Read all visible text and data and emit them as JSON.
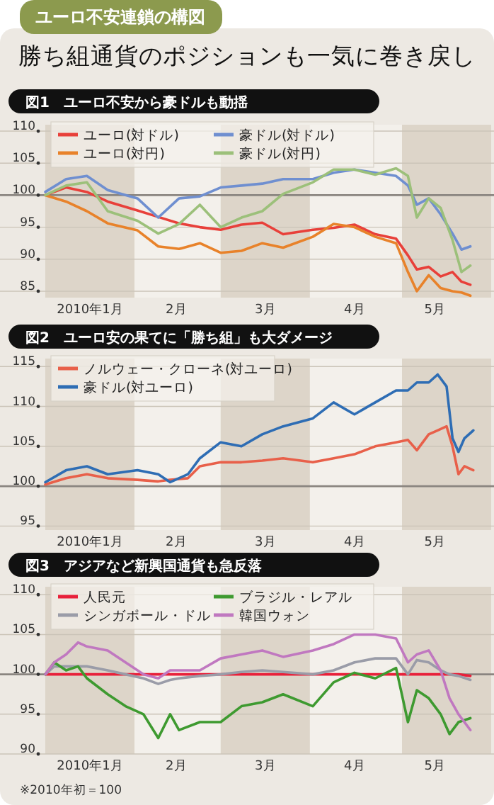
{
  "chart_data": [
    {
      "type": "line",
      "title": "勝ち組通貨のポジションも一気に巻き戻し",
      "subtitle": "図1　ユーロ不安から豪ドルも動揺",
      "annotations": [
        "ユーロ不安連鎖の構図"
      ],
      "x": [
        "2010-01-01",
        "2010-01-08",
        "2010-01-15",
        "2010-01-22",
        "2010-02-01",
        "2010-02-08",
        "2010-02-15",
        "2010-02-22",
        "2010-03-01",
        "2010-03-08",
        "2010-03-15",
        "2010-03-22",
        "2010-04-01",
        "2010-04-08",
        "2010-04-15",
        "2010-04-22",
        "2010-04-29",
        "2010-05-03",
        "2010-05-06",
        "2010-05-10",
        "2010-05-14",
        "2010-05-18",
        "2010-05-21",
        "2010-05-24"
      ],
      "series": [
        {
          "name": "ユーロ(対ドル)",
          "color": "#e8403a",
          "values": [
            100,
            101.2,
            100.5,
            99,
            97.6,
            96.6,
            95.6,
            95,
            94.6,
            95.4,
            95.7,
            93.9,
            94.6,
            94.9,
            95.4,
            93.9,
            93.2,
            90.6,
            88.4,
            88.8,
            87.3,
            88,
            86.5,
            86
          ]
        },
        {
          "name": "ユーロ(対円)",
          "color": "#e8822a",
          "values": [
            100,
            99,
            97.5,
            95.6,
            94.5,
            92,
            91.6,
            92.5,
            91,
            91.3,
            92.5,
            91.8,
            93.5,
            95.5,
            95,
            93.5,
            92.5,
            88,
            85,
            87.5,
            85.5,
            85,
            84.8,
            84.3
          ]
        },
        {
          "name": "豪ドル(対ドル)",
          "color": "#6f8fd0",
          "values": [
            100.5,
            102.5,
            103,
            100.8,
            99.5,
            96.5,
            99.5,
            99.8,
            101.2,
            101.5,
            101.8,
            102.5,
            102.5,
            103.5,
            104,
            103.5,
            103,
            101.5,
            98.5,
            99.5,
            97,
            94,
            91.5,
            92
          ]
        },
        {
          "name": "豪ドル(対円)",
          "color": "#9cc07a",
          "values": [
            100,
            101.5,
            102,
            97.5,
            96,
            94,
            95.5,
            98.5,
            95,
            96.5,
            97.5,
            100.2,
            102,
            104,
            104,
            103.2,
            104.2,
            103,
            96.5,
            99.5,
            98,
            93,
            88,
            89
          ]
        }
      ],
      "xlim": [
        "2010-01-01",
        "2010-05-31"
      ],
      "xticks": [
        {
          "value": "2010-01-16",
          "label": "2010年1月"
        },
        {
          "value": "2010-02-14",
          "label": "2月"
        },
        {
          "value": "2010-03-16",
          "label": "3月"
        },
        {
          "value": "2010-04-15",
          "label": "4月"
        },
        {
          "value": "2010-05-12",
          "label": "5月"
        }
      ],
      "ylim": [
        84,
        111
      ],
      "yticks": [
        85,
        90,
        95,
        100,
        105,
        110
      ],
      "grid": "y",
      "legend": "top left",
      "line_style": "solid",
      "marker": "none",
      "ref_lines": [
        {
          "axis": "y",
          "value": 100,
          "label": null,
          "color": "#8a8580"
        }
      ],
      "bands": [
        {
          "axis": "x",
          "from": "2010-01-01",
          "to": "2010-01-31",
          "label": null,
          "color": "#ddd5c9"
        },
        {
          "axis": "x",
          "from": "2010-03-01",
          "to": "2010-03-31",
          "label": null,
          "color": "#ddd5c9"
        },
        {
          "axis": "x",
          "from": "2010-05-01",
          "to": "2010-05-31",
          "label": null,
          "color": "#ddd5c9"
        }
      ]
    },
    {
      "type": "line",
      "title": "図2　ユーロ安の果てに「勝ち組」も大ダメージ",
      "x": [
        "2010-01-01",
        "2010-01-08",
        "2010-01-15",
        "2010-01-22",
        "2010-02-01",
        "2010-02-08",
        "2010-02-12",
        "2010-02-18",
        "2010-02-22",
        "2010-03-01",
        "2010-03-08",
        "2010-03-15",
        "2010-03-22",
        "2010-04-01",
        "2010-04-08",
        "2010-04-15",
        "2010-04-22",
        "2010-04-29",
        "2010-05-03",
        "2010-05-06",
        "2010-05-10",
        "2010-05-13",
        "2010-05-16",
        "2010-05-18",
        "2010-05-20",
        "2010-05-22",
        "2010-05-25"
      ],
      "series": [
        {
          "name": "ノルウェー・クローネ(対ユーロ)",
          "color": "#e8604a",
          "values": [
            100.2,
            101,
            101.5,
            101,
            100.8,
            100.6,
            100.8,
            101,
            102.5,
            103,
            103,
            103.2,
            103.5,
            103,
            103.5,
            104,
            105,
            105.5,
            105.8,
            104.5,
            106.5,
            107,
            107.5,
            105,
            101.5,
            102.5,
            102
          ]
        },
        {
          "name": "豪ドル(対ユーロ)",
          "color": "#2e6db4",
          "values": [
            100.5,
            102,
            102.5,
            101.5,
            102,
            101.5,
            100.5,
            101.5,
            103.5,
            105.5,
            105,
            106.5,
            107.5,
            108.5,
            110.5,
            109,
            110.5,
            112,
            112,
            113,
            113,
            114,
            112.5,
            106,
            104.3,
            106,
            107
          ]
        }
      ],
      "xlim": [
        "2010-01-01",
        "2010-05-31"
      ],
      "xticks": [
        {
          "value": "2010-01-16",
          "label": "2010年1月"
        },
        {
          "value": "2010-02-14",
          "label": "2月"
        },
        {
          "value": "2010-03-16",
          "label": "3月"
        },
        {
          "value": "2010-04-15",
          "label": "4月"
        },
        {
          "value": "2010-05-12",
          "label": "5月"
        }
      ],
      "ylim": [
        94.5,
        116
      ],
      "yticks": [
        95,
        100,
        105,
        110,
        115
      ],
      "grid": "y",
      "legend": "top left",
      "line_style": "solid",
      "marker": "none",
      "ref_lines": [
        {
          "axis": "y",
          "value": 100,
          "label": null,
          "color": "#8a8580"
        }
      ],
      "bands": [
        {
          "axis": "x",
          "from": "2010-01-01",
          "to": "2010-01-31",
          "label": null,
          "color": "#ddd5c9"
        },
        {
          "axis": "x",
          "from": "2010-03-01",
          "to": "2010-03-31",
          "label": null,
          "color": "#ddd5c9"
        },
        {
          "axis": "x",
          "from": "2010-05-01",
          "to": "2010-05-31",
          "label": null,
          "color": "#ddd5c9"
        }
      ]
    },
    {
      "type": "line",
      "title": "図3　アジアなど新興国通貨も急反落",
      "annotations": [
        "※2010年初＝100"
      ],
      "x": [
        "2010-01-01",
        "2010-01-04",
        "2010-01-08",
        "2010-01-12",
        "2010-01-15",
        "2010-01-22",
        "2010-01-28",
        "2010-02-03",
        "2010-02-08",
        "2010-02-12",
        "2010-02-15",
        "2010-02-22",
        "2010-03-01",
        "2010-03-08",
        "2010-03-15",
        "2010-03-22",
        "2010-04-01",
        "2010-04-08",
        "2010-04-15",
        "2010-04-22",
        "2010-04-29",
        "2010-05-03",
        "2010-05-06",
        "2010-05-10",
        "2010-05-14",
        "2010-05-17",
        "2010-05-20",
        "2010-05-24"
      ],
      "series": [
        {
          "name": "人民元",
          "color": "#e8203a",
          "values": [
            100,
            100,
            100,
            100,
            100,
            100,
            100,
            100,
            100,
            100,
            100,
            100,
            100,
            100,
            100,
            100,
            100,
            100,
            100,
            100,
            100,
            100,
            100,
            100,
            100,
            100,
            100,
            99.8
          ]
        },
        {
          "name": "シンガポール・ドル",
          "color": "#9a9ca8",
          "values": [
            100,
            101,
            101,
            101,
            101,
            100.5,
            100,
            99.5,
            98.8,
            99.3,
            99.5,
            99.8,
            100,
            100.3,
            100.5,
            100.3,
            100,
            100.5,
            101.5,
            102,
            102,
            100,
            101.8,
            101.5,
            100.5,
            100,
            99.8,
            99.3
          ]
        },
        {
          "name": "ブラジル・レアル",
          "color": "#3e9a30",
          "values": [
            100,
            101.5,
            100.5,
            101,
            99.5,
            97.5,
            96,
            95,
            92,
            95,
            93,
            94,
            94,
            96,
            96.5,
            97.5,
            96,
            99,
            100.2,
            99.5,
            100.8,
            94,
            98,
            97,
            95,
            92.5,
            94,
            94.5
          ]
        },
        {
          "name": "韓国ウォン",
          "color": "#c078c0",
          "values": [
            100,
            101.5,
            102.5,
            104,
            103.5,
            103,
            101.5,
            100,
            99.5,
            100.5,
            100.5,
            100.5,
            102,
            102.5,
            103,
            102.2,
            103,
            103.8,
            105,
            105,
            104.5,
            101.5,
            102.5,
            103,
            100.5,
            97,
            95,
            93
          ]
        }
      ],
      "xlim": [
        "2010-01-01",
        "2010-05-31"
      ],
      "xticks": [
        {
          "value": "2010-01-16",
          "label": "2010年1月"
        },
        {
          "value": "2010-02-14",
          "label": "2月"
        },
        {
          "value": "2010-03-16",
          "label": "3月"
        },
        {
          "value": "2010-04-15",
          "label": "4月"
        },
        {
          "value": "2010-05-12",
          "label": "5月"
        }
      ],
      "ylim": [
        90,
        111
      ],
      "yticks": [
        90,
        95,
        100,
        105,
        110
      ],
      "grid": "y",
      "legend": "top left",
      "line_style": "solid",
      "marker": "none",
      "ref_lines": [
        {
          "axis": "y",
          "value": 100,
          "label": null,
          "color": "#8a8580"
        }
      ],
      "bands": [
        {
          "axis": "x",
          "from": "2010-01-01",
          "to": "2010-01-31",
          "label": null,
          "color": "#ddd5c9"
        },
        {
          "axis": "x",
          "from": "2010-03-01",
          "to": "2010-03-31",
          "label": null,
          "color": "#ddd5c9"
        },
        {
          "axis": "x",
          "from": "2010-05-01",
          "to": "2010-05-31",
          "label": null,
          "color": "#ddd5c9"
        }
      ]
    }
  ]
}
